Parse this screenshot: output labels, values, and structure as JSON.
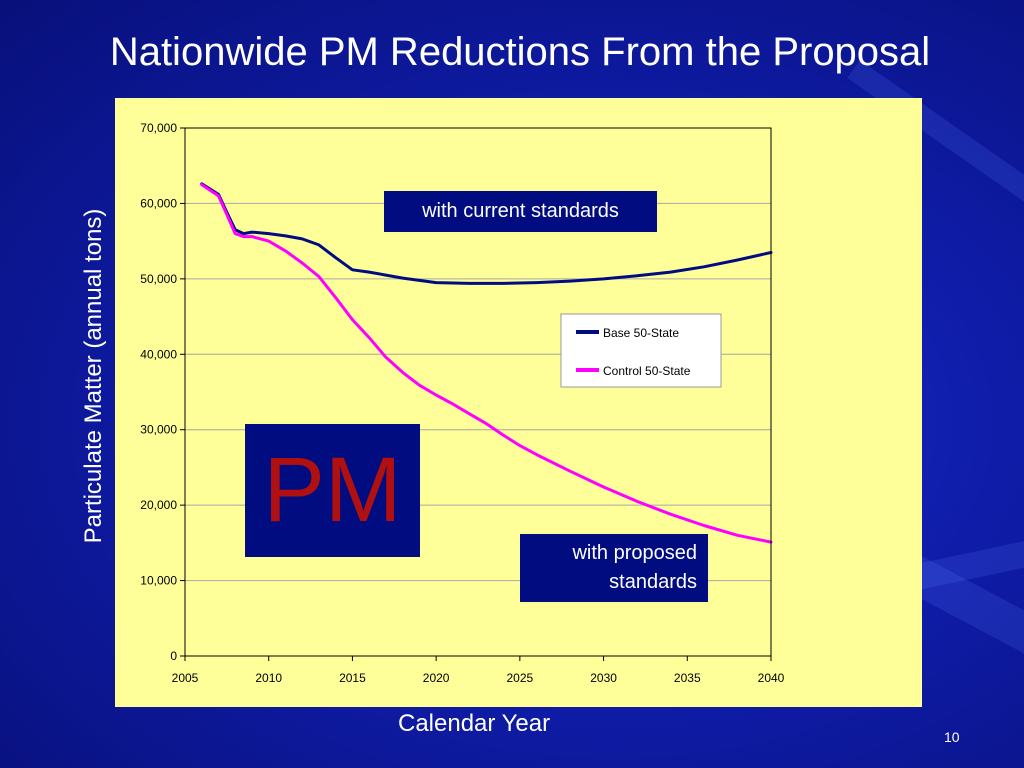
{
  "slide": {
    "title": "Nationwide PM Reductions From the Proposal",
    "page_number": "10",
    "colors": {
      "background": "#0f1ca8",
      "plot_panel": "#ffff99",
      "annotation_box": "#000c80",
      "pm_text": "#b01010"
    }
  },
  "annotations": {
    "current": "with current standards",
    "proposed_line1": "with proposed",
    "proposed_line2": "standards",
    "pm": "PM"
  },
  "chart_data": {
    "type": "line",
    "xlabel": "Calendar Year",
    "ylabel": "Particulate Matter (annual tons)",
    "xlim": [
      2005,
      2040
    ],
    "ylim": [
      0,
      70000
    ],
    "x_ticks": [
      "2005",
      "2010",
      "2015",
      "2020",
      "2025",
      "2030",
      "2035",
      "2040"
    ],
    "y_ticks": [
      "0",
      "10,000",
      "20,000",
      "30,000",
      "40,000",
      "50,000",
      "60,000",
      "70,000"
    ],
    "grid": "horizontal",
    "legend_position": "right",
    "series": [
      {
        "name": "Base 50-State",
        "color": "#000c80",
        "points": [
          [
            2006,
            62600
          ],
          [
            2007,
            61200
          ],
          [
            2007.5,
            58800
          ],
          [
            2008,
            56500
          ],
          [
            2008.5,
            56000
          ],
          [
            2009,
            56200
          ],
          [
            2010,
            56000
          ],
          [
            2011,
            55700
          ],
          [
            2012,
            55300
          ],
          [
            2013,
            54500
          ],
          [
            2014,
            52800
          ],
          [
            2015,
            51200
          ],
          [
            2016,
            50900
          ],
          [
            2017,
            50500
          ],
          [
            2018,
            50100
          ],
          [
            2019,
            49800
          ],
          [
            2020,
            49500
          ],
          [
            2022,
            49400
          ],
          [
            2024,
            49400
          ],
          [
            2026,
            49500
          ],
          [
            2028,
            49700
          ],
          [
            2030,
            50000
          ],
          [
            2032,
            50400
          ],
          [
            2034,
            50900
          ],
          [
            2036,
            51600
          ],
          [
            2038,
            52500
          ],
          [
            2040,
            53500
          ]
        ]
      },
      {
        "name": "Control 50-State",
        "color": "#ff00ff",
        "points": [
          [
            2006,
            62500
          ],
          [
            2007,
            61000
          ],
          [
            2007.5,
            58500
          ],
          [
            2008,
            56000
          ],
          [
            2008.5,
            55600
          ],
          [
            2009,
            55600
          ],
          [
            2010,
            55000
          ],
          [
            2011,
            53700
          ],
          [
            2012,
            52100
          ],
          [
            2013,
            50300
          ],
          [
            2014,
            47500
          ],
          [
            2015,
            44600
          ],
          [
            2016,
            42200
          ],
          [
            2017,
            39600
          ],
          [
            2018,
            37600
          ],
          [
            2019,
            35900
          ],
          [
            2020,
            34600
          ],
          [
            2021,
            33400
          ],
          [
            2022,
            32100
          ],
          [
            2023,
            30800
          ],
          [
            2024,
            29300
          ],
          [
            2025,
            27900
          ],
          [
            2026,
            26700
          ],
          [
            2028,
            24500
          ],
          [
            2030,
            22400
          ],
          [
            2032,
            20500
          ],
          [
            2034,
            18800
          ],
          [
            2036,
            17300
          ],
          [
            2038,
            16000
          ],
          [
            2040,
            15100
          ]
        ]
      }
    ]
  }
}
